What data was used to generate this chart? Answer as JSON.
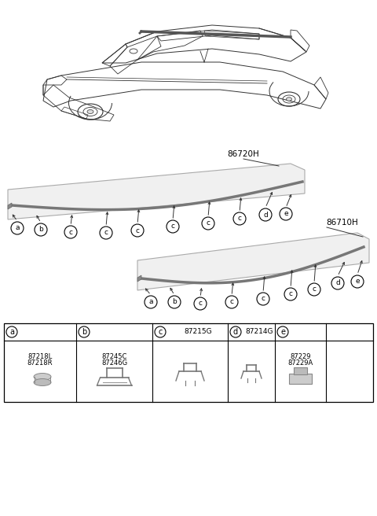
{
  "bg_color": "#ffffff",
  "strip1_label": "86720H",
  "strip2_label": "86710H",
  "col_a_codes": [
    "87218L",
    "87218R"
  ],
  "col_b_codes": [
    "87245C",
    "87246G"
  ],
  "col_c_code": "87215G",
  "col_d_code": "87214G",
  "col_e_codes": [
    "87229",
    "87229A"
  ],
  "line_color": "#333333",
  "strip_face": "#f0f0f0",
  "strip_edge": "#aaaaaa",
  "molding_color": "#999999",
  "table_col_bounds": [
    5,
    97,
    194,
    290,
    350,
    415,
    475
  ]
}
